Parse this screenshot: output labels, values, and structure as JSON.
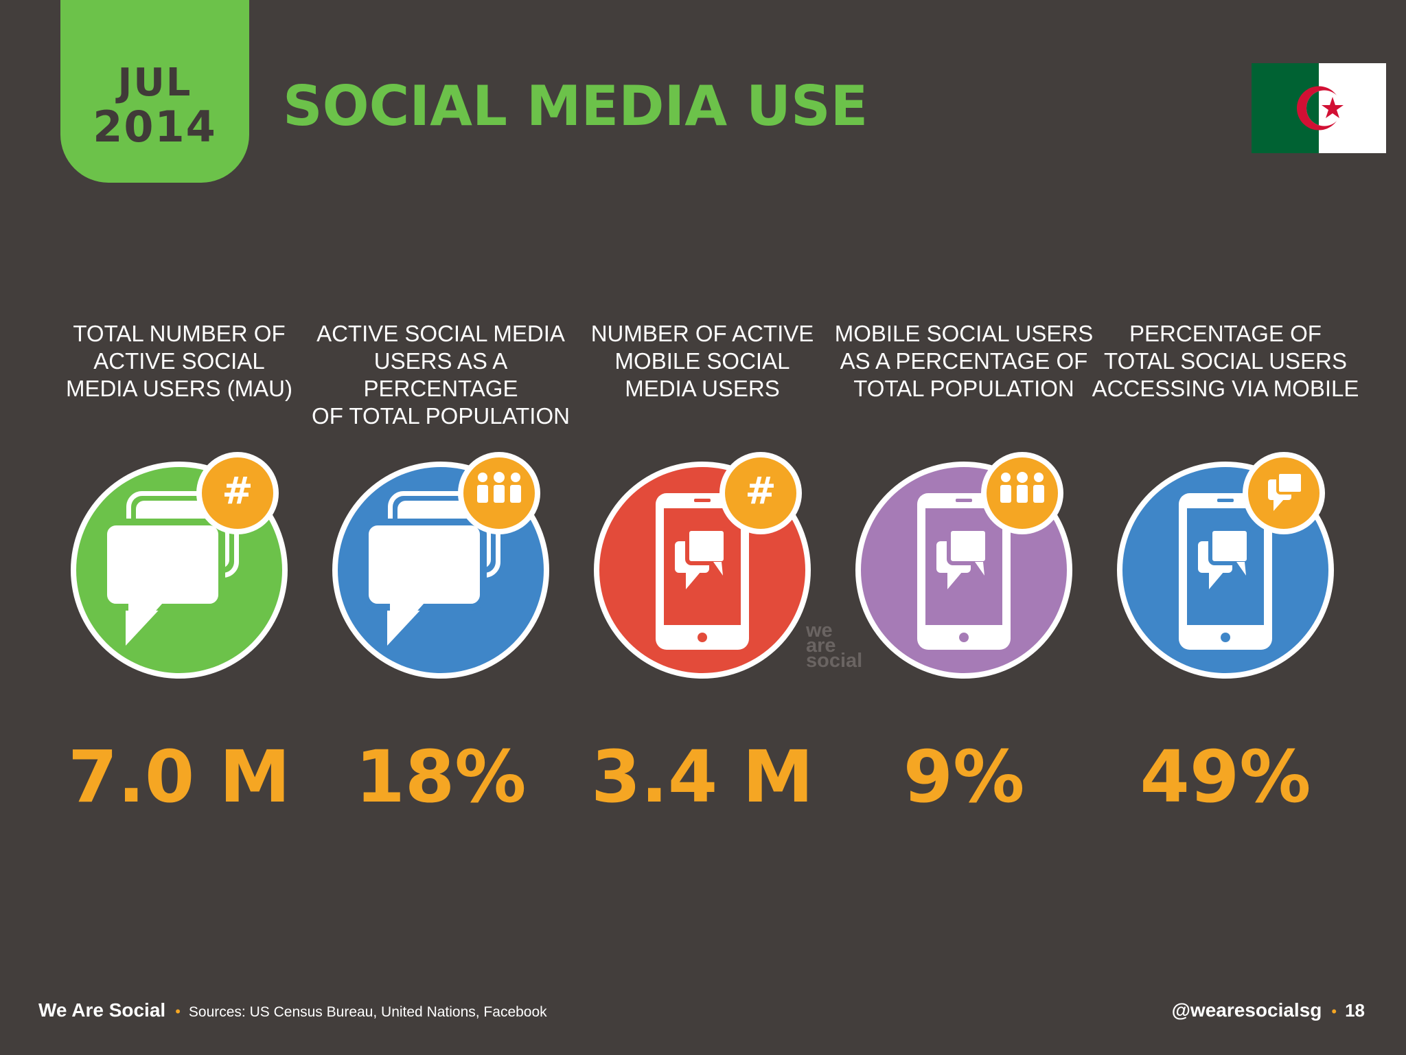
{
  "date": {
    "month": "JUL",
    "year": "2014"
  },
  "title": "SOCIAL MEDIA USE",
  "flag": {
    "name": "algeria-flag-icon",
    "green": "#006233",
    "white": "#ffffff",
    "red": "#d21034"
  },
  "colors": {
    "accent_green": "#6cc24a",
    "value_orange": "#f5a623",
    "background": "#433e3c"
  },
  "stats": [
    {
      "label_lines": [
        "TOTAL NUMBER OF",
        "ACTIVE SOCIAL",
        "MEDIA USERS (MAU)"
      ],
      "value": "7.0 M",
      "circle_color": "#6cc24a",
      "icon": "chat-bubbles-icon",
      "badge_icon": "hash-icon"
    },
    {
      "label_lines": [
        "ACTIVE SOCIAL MEDIA",
        "USERS AS A PERCENTAGE",
        "OF TOTAL POPULATION"
      ],
      "value": "18%",
      "circle_color": "#3f86c8",
      "icon": "chat-bubbles-icon",
      "badge_icon": "people-icon"
    },
    {
      "label_lines": [
        "NUMBER OF ACTIVE",
        "MOBILE SOCIAL",
        "MEDIA USERS"
      ],
      "value": "3.4 M",
      "circle_color": "#e34b3a",
      "icon": "mobile-chat-icon",
      "badge_icon": "hash-icon"
    },
    {
      "label_lines": [
        "MOBILE SOCIAL USERS",
        "AS A PERCENTAGE OF",
        "TOTAL POPULATION"
      ],
      "value": "9%",
      "circle_color": "#a67bb6",
      "icon": "mobile-chat-icon",
      "badge_icon": "people-icon"
    },
    {
      "label_lines": [
        "PERCENTAGE OF",
        "TOTAL SOCIAL USERS",
        "ACCESSING VIA MOBILE"
      ],
      "value": "49%",
      "circle_color": "#3f86c8",
      "icon": "mobile-chat-icon",
      "badge_icon": "chat-bubbles-icon"
    }
  ],
  "watermark": {
    "line1": "we",
    "line2": "are",
    "line3": "social"
  },
  "footer": {
    "brand": "We Are Social",
    "sources": "Sources: US Census Bureau, United Nations, Facebook",
    "handle": "@wearesocialsg",
    "page": "18"
  }
}
